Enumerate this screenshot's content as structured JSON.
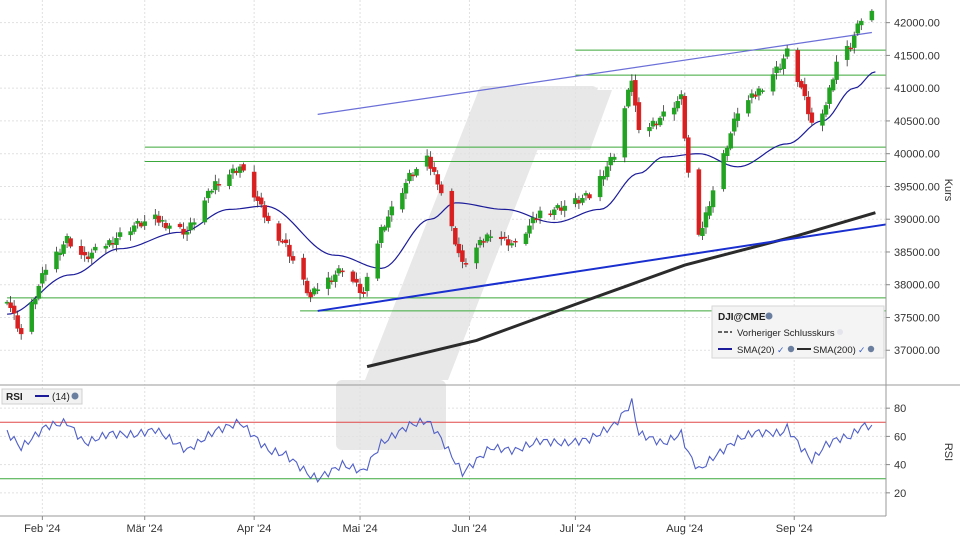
{
  "chart_data": {
    "type": "candlestick",
    "title": "",
    "price_panel": {
      "ylabel": "Kurs",
      "ylim": [
        36500,
        42300
      ],
      "yticks": [
        37000,
        37500,
        38000,
        38500,
        39000,
        39500,
        40000,
        40500,
        41000,
        41500,
        42000
      ],
      "ytick_labels": [
        "37000.00",
        "37500.00",
        "38000.00",
        "38500.00",
        "39000.00",
        "39500.00",
        "40000.00",
        "40500.00",
        "41000.00",
        "41500.00",
        "42000.00"
      ],
      "ohlc_keypoints": [
        [
          "2024-01-22",
          37800
        ],
        [
          "2024-01-26",
          37250
        ],
        [
          "2024-02-02",
          38250
        ],
        [
          "2024-02-08",
          38700
        ],
        [
          "2024-02-13",
          38400
        ],
        [
          "2024-02-20",
          38650
        ],
        [
          "2024-02-27",
          38900
        ],
        [
          "2024-03-04",
          39000
        ],
        [
          "2024-03-13",
          38800
        ],
        [
          "2024-03-21",
          39550
        ],
        [
          "2024-03-28",
          39800
        ],
        [
          "2024-04-05",
          38950
        ],
        [
          "2024-04-10",
          38600
        ],
        [
          "2024-04-17",
          37800
        ],
        [
          "2024-04-19",
          37950
        ],
        [
          "2024-04-26",
          38250
        ],
        [
          "2024-05-02",
          37850
        ],
        [
          "2024-05-07",
          38850
        ],
        [
          "2024-05-15",
          39650
        ],
        [
          "2024-05-20",
          39900
        ],
        [
          "2024-05-23",
          39600
        ],
        [
          "2024-05-30",
          38300
        ],
        [
          "2024-06-07",
          38800
        ],
        [
          "2024-06-14",
          38600
        ],
        [
          "2024-06-21",
          39100
        ],
        [
          "2024-06-28",
          39200
        ],
        [
          "2024-07-05",
          39350
        ],
        [
          "2024-07-12",
          40000
        ],
        [
          "2024-07-17",
          41150
        ],
        [
          "2024-07-19",
          40300
        ],
        [
          "2024-07-26",
          40600
        ],
        [
          "2024-07-31",
          40850
        ],
        [
          "2024-08-02",
          39700
        ],
        [
          "2024-08-05",
          38700
        ],
        [
          "2024-08-09",
          39450
        ],
        [
          "2024-08-16",
          40650
        ],
        [
          "2024-08-21",
          40900
        ],
        [
          "2024-08-28",
          41350
        ],
        [
          "2024-08-30",
          41550
        ],
        [
          "2024-09-03",
          41000
        ],
        [
          "2024-09-06",
          40450
        ],
        [
          "2024-09-10",
          40750
        ],
        [
          "2024-09-13",
          41400
        ],
        [
          "2024-09-17",
          41650
        ],
        [
          "2024-09-20",
          42050
        ],
        [
          "2024-09-23",
          42150
        ]
      ],
      "sma20": [
        [
          "2024-01-22",
          37550
        ],
        [
          "2024-02-09",
          38150
        ],
        [
          "2024-02-23",
          38550
        ],
        [
          "2024-03-11",
          38800
        ],
        [
          "2024-03-25",
          39150
        ],
        [
          "2024-04-04",
          39200
        ],
        [
          "2024-04-24",
          38450
        ],
        [
          "2024-05-07",
          38250
        ],
        [
          "2024-05-21",
          39000
        ],
        [
          "2024-05-28",
          39250
        ],
        [
          "2024-06-11",
          39150
        ],
        [
          "2024-06-25",
          38950
        ],
        [
          "2024-07-08",
          39150
        ],
        [
          "2024-07-19",
          39700
        ],
        [
          "2024-07-26",
          39950
        ],
        [
          "2024-08-05",
          40000
        ],
        [
          "2024-08-16",
          39800
        ],
        [
          "2024-08-30",
          40150
        ],
        [
          "2024-09-09",
          40500
        ],
        [
          "2024-09-18",
          41000
        ],
        [
          "2024-09-24",
          41250
        ]
      ],
      "sma200": [
        [
          "2024-05-03",
          36750
        ],
        [
          "2024-06-03",
          37150
        ],
        [
          "2024-07-01",
          37700
        ],
        [
          "2024-08-01",
          38300
        ],
        [
          "2024-09-02",
          38750
        ],
        [
          "2024-09-24",
          39100
        ]
      ],
      "trendlines": [
        {
          "from": [
            "2024-04-19",
            37600
          ],
          "to": [
            "2024-09-27",
            38920
          ],
          "style": "support"
        },
        {
          "from": [
            "2024-04-19",
            40600
          ],
          "to": [
            "2024-09-23",
            41850
          ],
          "style": "channel"
        }
      ],
      "horizontal_levels": [
        {
          "y": 41580,
          "from": "2024-07-01"
        },
        {
          "y": 41200,
          "from": "2024-07-01"
        },
        {
          "y": 40100,
          "from": "2024-03-01"
        },
        {
          "y": 39880,
          "from": "2024-03-01"
        },
        {
          "y": 37800,
          "from": "2024-01-22"
        },
        {
          "y": 37600,
          "from": "2024-04-14"
        }
      ],
      "legend": {
        "placement": "bottom-right",
        "symbol": "DJI@CME",
        "entries": [
          "Vorheriger Schlusskurs",
          "SMA(20)",
          "SMA(200)"
        ]
      }
    },
    "rsi_panel": {
      "label": "RSI",
      "period_label": "(14)",
      "ylabel": "RSI",
      "ylim": [
        5,
        95
      ],
      "yticks": [
        20,
        40,
        60,
        80
      ],
      "levels": [
        70,
        30
      ],
      "values": [
        [
          "2024-01-22",
          63
        ],
        [
          "2024-01-26",
          52
        ],
        [
          "2024-02-02",
          67
        ],
        [
          "2024-02-08",
          70
        ],
        [
          "2024-02-13",
          55
        ],
        [
          "2024-02-20",
          62
        ],
        [
          "2024-02-27",
          61
        ],
        [
          "2024-03-04",
          65
        ],
        [
          "2024-03-13",
          50
        ],
        [
          "2024-03-21",
          64
        ],
        [
          "2024-03-28",
          70
        ],
        [
          "2024-04-05",
          50
        ],
        [
          "2024-04-10",
          47
        ],
        [
          "2024-04-17",
          32
        ],
        [
          "2024-04-19",
          30
        ],
        [
          "2024-04-26",
          40
        ],
        [
          "2024-05-02",
          35
        ],
        [
          "2024-05-07",
          55
        ],
        [
          "2024-05-15",
          68
        ],
        [
          "2024-05-20",
          71
        ],
        [
          "2024-05-23",
          62
        ],
        [
          "2024-05-30",
          34
        ],
        [
          "2024-06-07",
          52
        ],
        [
          "2024-06-14",
          50
        ],
        [
          "2024-06-21",
          57
        ],
        [
          "2024-06-28",
          55
        ],
        [
          "2024-07-05",
          58
        ],
        [
          "2024-07-12",
          68
        ],
        [
          "2024-07-17",
          84
        ],
        [
          "2024-07-19",
          62
        ],
        [
          "2024-07-26",
          55
        ],
        [
          "2024-07-31",
          62
        ],
        [
          "2024-08-02",
          48
        ],
        [
          "2024-08-05",
          36
        ],
        [
          "2024-08-09",
          45
        ],
        [
          "2024-08-16",
          58
        ],
        [
          "2024-08-21",
          63
        ],
        [
          "2024-08-28",
          62
        ],
        [
          "2024-08-30",
          66
        ],
        [
          "2024-09-03",
          52
        ],
        [
          "2024-09-06",
          43
        ],
        [
          "2024-09-10",
          54
        ],
        [
          "2024-09-13",
          58
        ],
        [
          "2024-09-17",
          60
        ],
        [
          "2024-09-20",
          67
        ],
        [
          "2024-09-23",
          68
        ]
      ]
    },
    "x_axis": {
      "range": [
        "2024-01-20",
        "2024-09-27"
      ],
      "ticks": [
        {
          "date": "2024-02-01",
          "label": "Feb '24"
        },
        {
          "date": "2024-03-01",
          "label": "Mär '24"
        },
        {
          "date": "2024-04-01",
          "label": "Apr '24"
        },
        {
          "date": "2024-05-01",
          "label": "Mai '24"
        },
        {
          "date": "2024-06-01",
          "label": "Jun '24"
        },
        {
          "date": "2024-07-01",
          "label": "Jul '24"
        },
        {
          "date": "2024-08-01",
          "label": "Aug '24"
        },
        {
          "date": "2024-09-01",
          "label": "Sep '24"
        }
      ]
    },
    "grid": true,
    "colors": {
      "up": "#22a322",
      "down": "#d82020",
      "sma20": "#1c1c9a",
      "sma200": "#2b2b2b",
      "support": "#1a2fcf",
      "channel": "#6b6fd8",
      "level": "#3aa83a",
      "rsi_line": "#5060c8",
      "rsi_upper": "#e04848",
      "rsi_lower": "#3aa83a",
      "watermark": "#e6e6e6"
    }
  }
}
